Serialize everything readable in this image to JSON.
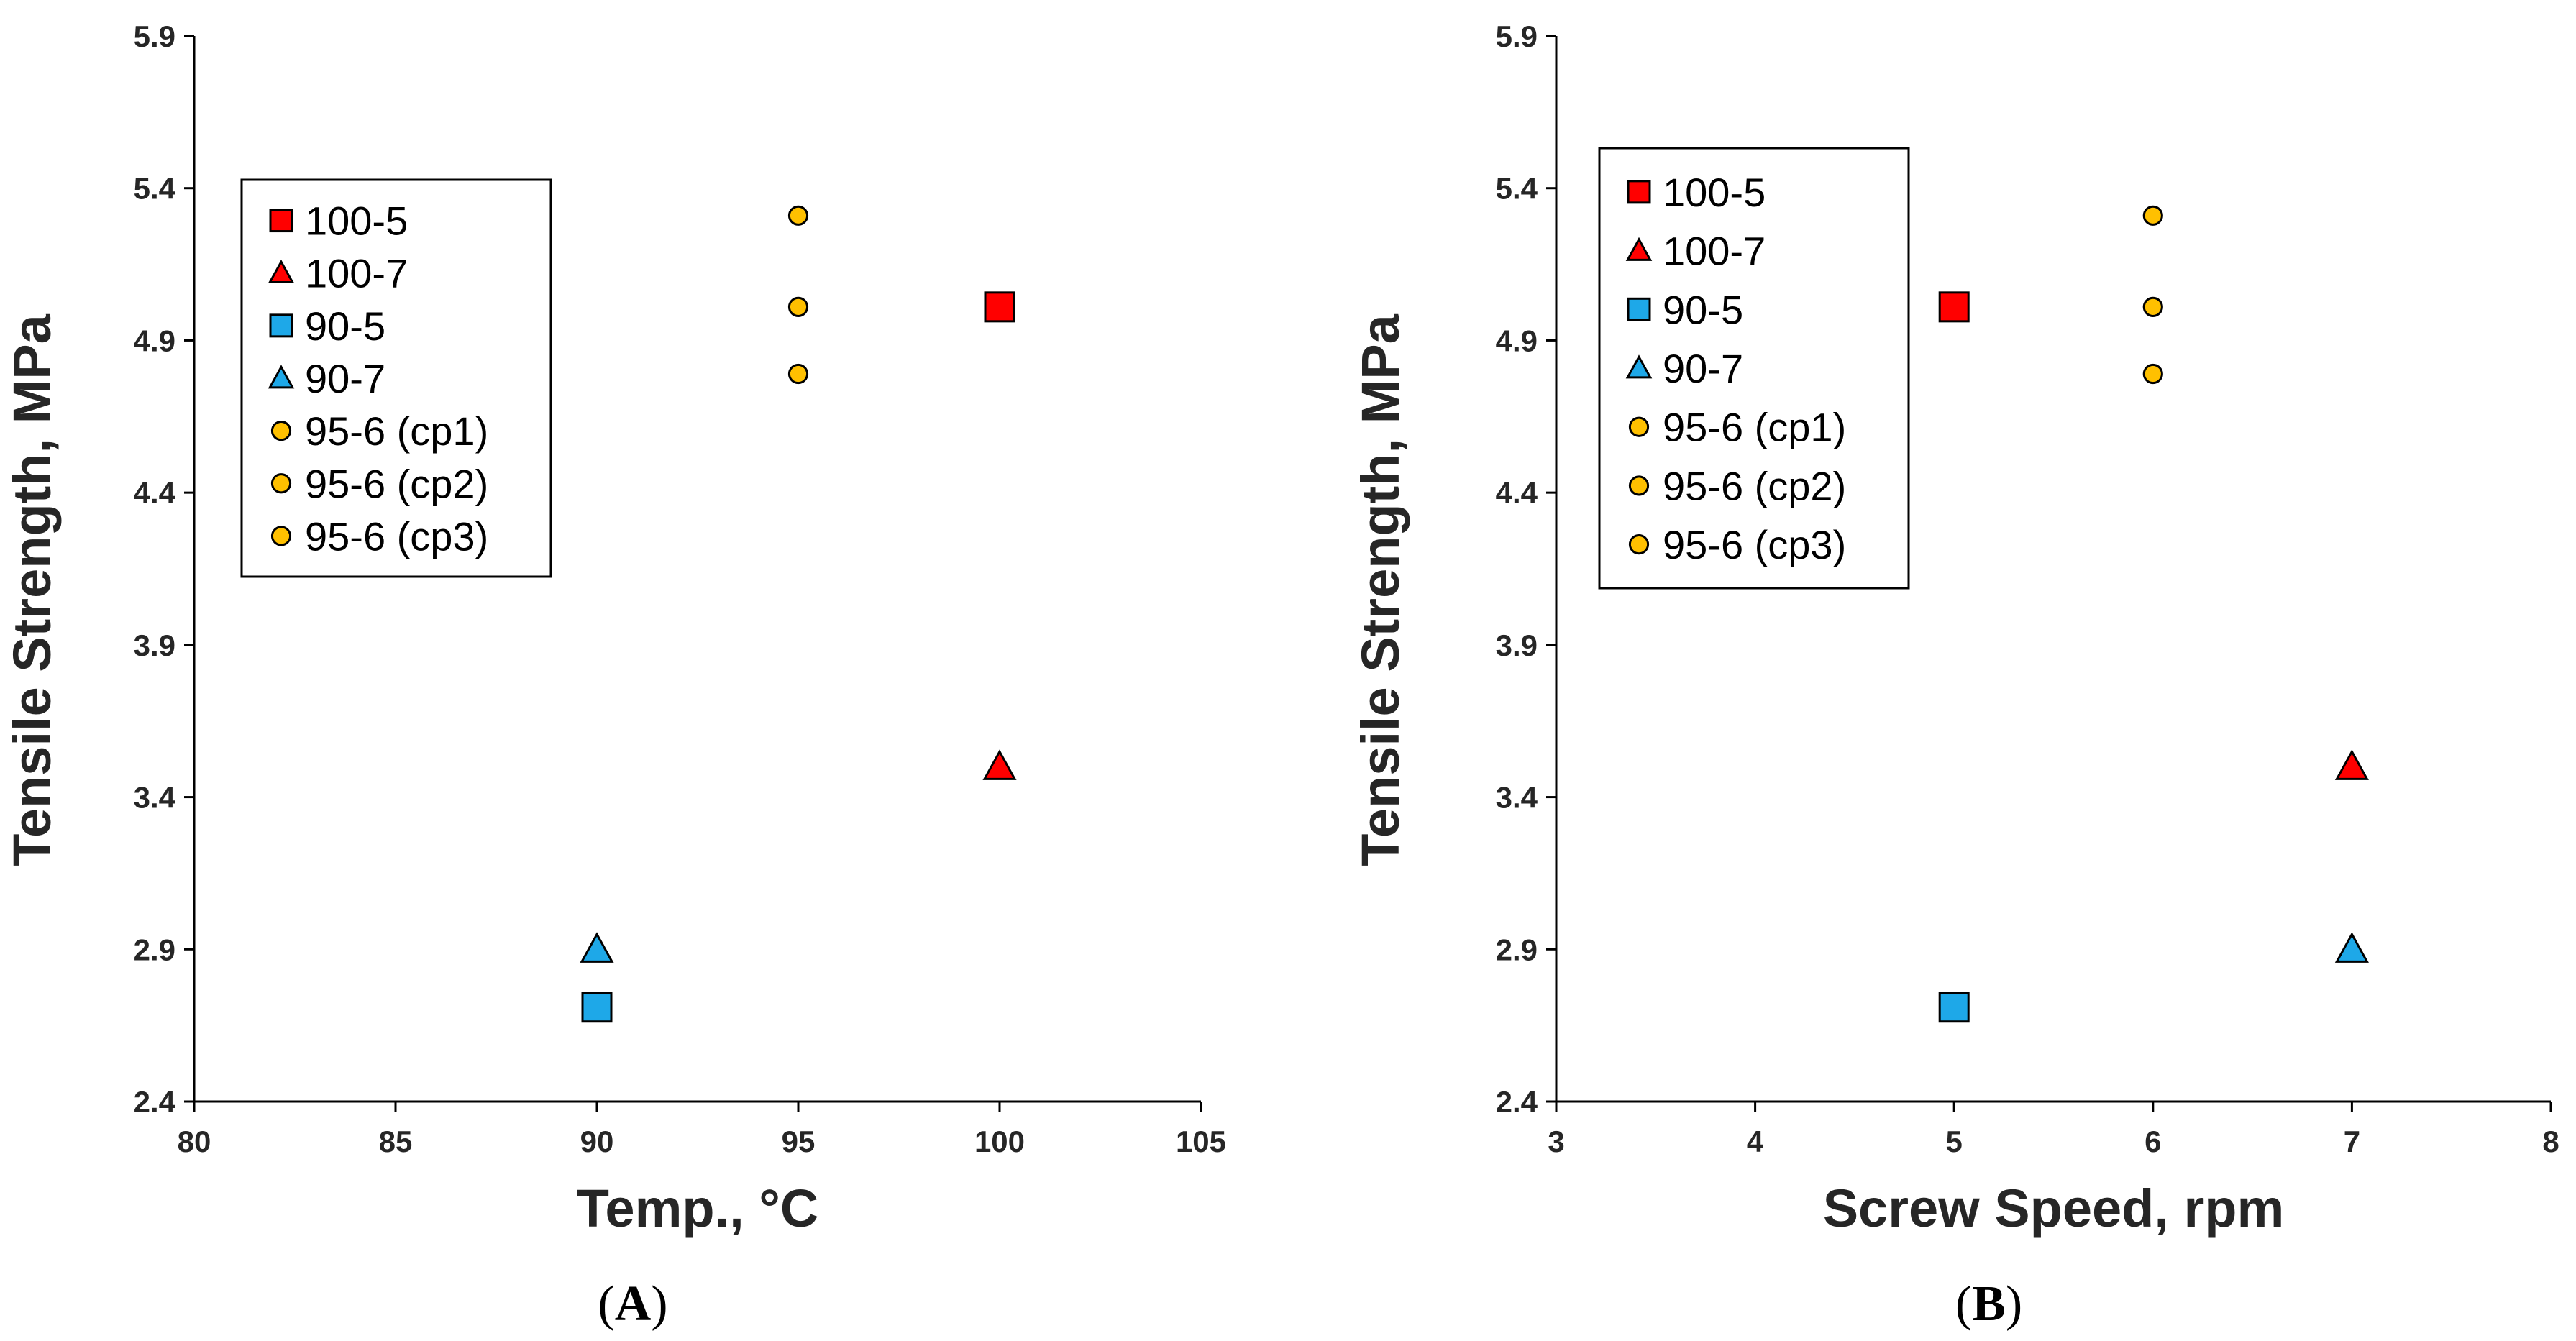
{
  "colors": {
    "red": "#FF0000",
    "blue": "#1EA8E8",
    "orange": "#FFC000",
    "axis": "#000000",
    "text": "#262626"
  },
  "chart_data": [
    {
      "type": "scatter",
      "panel_label": "A",
      "title": "",
      "xlabel": "Temp., °C",
      "ylabel": "Tensile Strength, MPa",
      "xlim": [
        80,
        105
      ],
      "ylim": [
        2.4,
        5.9
      ],
      "xticks": [
        "80",
        "85",
        "90",
        "95",
        "100",
        "105"
      ],
      "yticks": [
        "2.4",
        "2.9",
        "3.4",
        "3.9",
        "4.4",
        "4.9",
        "5.4",
        "5.9"
      ],
      "grid": false,
      "legend_position": "top-left",
      "series": [
        {
          "name": "100-5",
          "marker": "square",
          "color": "red",
          "points": [
            [
              100,
              5.01
            ]
          ]
        },
        {
          "name": "100-7",
          "marker": "triangle",
          "color": "red",
          "points": [
            [
              100,
              3.5
            ]
          ]
        },
        {
          "name": "90-5",
          "marker": "square",
          "color": "blue",
          "points": [
            [
              90,
              2.71
            ]
          ]
        },
        {
          "name": "90-7",
          "marker": "triangle",
          "color": "blue",
          "points": [
            [
              90,
              2.9
            ]
          ]
        },
        {
          "name": "95-6 (cp1)",
          "marker": "circle",
          "color": "orange",
          "points": [
            [
              95,
              5.31
            ]
          ]
        },
        {
          "name": "95-6 (cp2)",
          "marker": "circle",
          "color": "orange",
          "points": [
            [
              95,
              5.01
            ]
          ]
        },
        {
          "name": "95-6 (cp3)",
          "marker": "circle",
          "color": "orange",
          "points": [
            [
              95,
              4.79
            ]
          ]
        }
      ]
    },
    {
      "type": "scatter",
      "panel_label": "B",
      "title": "",
      "xlabel": "Screw Speed, rpm",
      "ylabel": "Tensile Strength, MPa",
      "xlim": [
        3,
        8
      ],
      "ylim": [
        2.4,
        5.9
      ],
      "xticks": [
        "3",
        "4",
        "5",
        "6",
        "7",
        "8"
      ],
      "yticks": [
        "2.4",
        "2.9",
        "3.4",
        "3.9",
        "4.4",
        "4.9",
        "5.4",
        "5.9"
      ],
      "grid": false,
      "legend_position": "top-left",
      "series": [
        {
          "name": "100-5",
          "marker": "square",
          "color": "red",
          "points": [
            [
              5,
              5.01
            ]
          ]
        },
        {
          "name": "100-7",
          "marker": "triangle",
          "color": "red",
          "points": [
            [
              7,
              3.5
            ]
          ]
        },
        {
          "name": "90-5",
          "marker": "square",
          "color": "blue",
          "points": [
            [
              5,
              2.71
            ]
          ]
        },
        {
          "name": "90-7",
          "marker": "triangle",
          "color": "blue",
          "points": [
            [
              7,
              2.9
            ]
          ]
        },
        {
          "name": "95-6 (cp1)",
          "marker": "circle",
          "color": "orange",
          "points": [
            [
              6,
              5.31
            ]
          ]
        },
        {
          "name": "95-6 (cp2)",
          "marker": "circle",
          "color": "orange",
          "points": [
            [
              6,
              5.01
            ]
          ]
        },
        {
          "name": "95-6 (cp3)",
          "marker": "circle",
          "color": "orange",
          "points": [
            [
              6,
              4.79
            ]
          ]
        }
      ]
    }
  ]
}
